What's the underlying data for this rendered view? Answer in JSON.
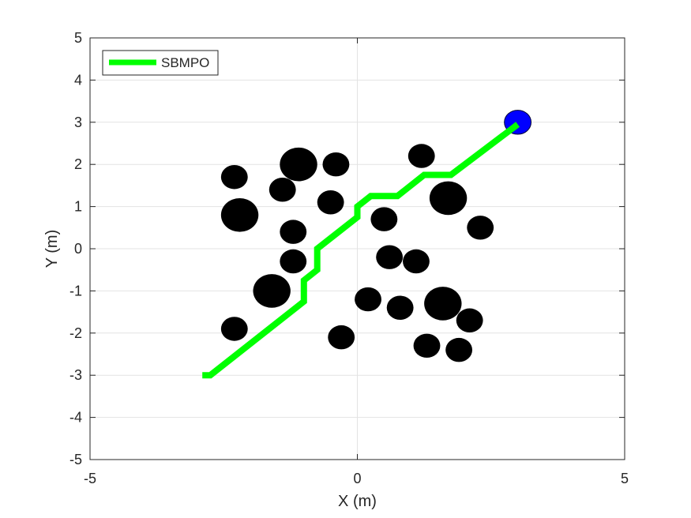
{
  "chart_data": {
    "type": "line",
    "title": "",
    "xlabel": "X (m)",
    "ylabel": "Y (m)",
    "xlim": [
      -5,
      5
    ],
    "ylim": [
      -5,
      5
    ],
    "xticks": [
      "-5",
      "0",
      "5"
    ],
    "yticks": [
      "5",
      "4",
      "3",
      "2",
      "1",
      "0",
      "-1",
      "-2",
      "-3",
      "-4",
      "-5"
    ],
    "grid": true,
    "legend": {
      "position": "top-left",
      "entries": [
        "SBMPO"
      ]
    },
    "colors": {
      "path": "#00ff00",
      "obstacle": "#000000",
      "goal": "#0000ff",
      "grid": "#e3e3e3",
      "axis": "#262626"
    },
    "series": [
      {
        "name": "SBMPO",
        "x": [
          -2.9,
          -2.75,
          -1.0,
          -1.0,
          -0.75,
          -0.75,
          0.0,
          0.0,
          0.25,
          0.75,
          1.25,
          1.75,
          3.0
        ],
        "y": [
          -3.0,
          -3.0,
          -1.25,
          -0.75,
          -0.5,
          0.0,
          0.75,
          1.0,
          1.25,
          1.25,
          1.75,
          1.75,
          2.95
        ]
      }
    ],
    "obstacles": [
      {
        "x": -2.3,
        "y": 1.7,
        "r": 0.25
      },
      {
        "x": -1.1,
        "y": 2.0,
        "r": 0.35
      },
      {
        "x": -0.4,
        "y": 2.0,
        "r": 0.25
      },
      {
        "x": -1.4,
        "y": 1.4,
        "r": 0.25
      },
      {
        "x": -2.2,
        "y": 0.8,
        "r": 0.35
      },
      {
        "x": -0.5,
        "y": 1.1,
        "r": 0.25
      },
      {
        "x": -1.2,
        "y": 0.4,
        "r": 0.25
      },
      {
        "x": -1.2,
        "y": -0.3,
        "r": 0.25
      },
      {
        "x": -1.6,
        "y": -1.0,
        "r": 0.35
      },
      {
        "x": -2.3,
        "y": -1.9,
        "r": 0.25
      },
      {
        "x": -0.3,
        "y": -2.1,
        "r": 0.25
      },
      {
        "x": 0.2,
        "y": -1.2,
        "r": 0.25
      },
      {
        "x": 0.5,
        "y": 0.7,
        "r": 0.25
      },
      {
        "x": 0.6,
        "y": -0.2,
        "r": 0.25
      },
      {
        "x": 1.1,
        "y": -0.3,
        "r": 0.25
      },
      {
        "x": 1.2,
        "y": 2.2,
        "r": 0.25
      },
      {
        "x": 1.7,
        "y": 1.2,
        "r": 0.35
      },
      {
        "x": 2.3,
        "y": 0.5,
        "r": 0.25
      },
      {
        "x": 0.8,
        "y": -1.4,
        "r": 0.25
      },
      {
        "x": 1.6,
        "y": -1.3,
        "r": 0.35
      },
      {
        "x": 2.1,
        "y": -1.7,
        "r": 0.25
      },
      {
        "x": 1.3,
        "y": -2.3,
        "r": 0.25
      },
      {
        "x": 1.9,
        "y": -2.4,
        "r": 0.25
      }
    ],
    "goal": {
      "x": 3.0,
      "y": 3.0,
      "r": 0.25
    }
  }
}
